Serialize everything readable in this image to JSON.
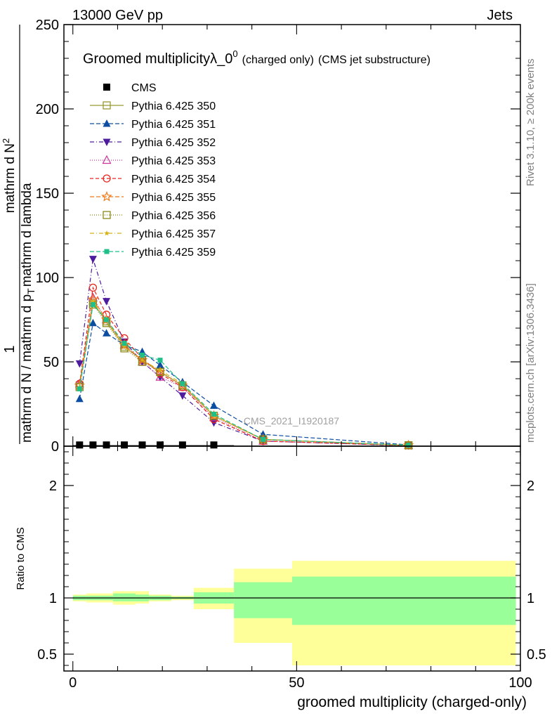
{
  "header": {
    "left": "13000 GeV pp",
    "right": "Jets"
  },
  "side_texts": {
    "rivet": "Rivet 3.1.10, ≥ 200k events",
    "mcplots": "mcplots.cern.ch [arXiv:1306.3436]"
  },
  "watermark": "CMS_2021_I1920187",
  "colors": {
    "band_outer": "#ffff99",
    "band_inner": "#99ff99"
  },
  "chart_data": [
    {
      "type": "line",
      "title": {
        "main": "Groomed multiplicityλ_0",
        "sup": "0",
        "small": "(charged only)",
        "tail": "(CMS jet substructure)"
      },
      "ylabel": {
        "top": "mathrm d N",
        "top_super": "2",
        "bottom": "mathrm d N / mathrm d p",
        "mid": "mathrm d p",
        "sub_T": "T",
        "tail": "mathrm d lambda",
        "tail2": "mathrm d lambda",
        "one": "1"
      },
      "xlim": [
        -2,
        100
      ],
      "ylim": [
        0,
        250
      ],
      "yticks": [
        0,
        50,
        100,
        150,
        200,
        250
      ],
      "ytick_labels": [
        "0",
        "50",
        "100",
        "150",
        "200",
        "250"
      ],
      "x": [
        1.5,
        4.5,
        7.5,
        11.5,
        15.5,
        19.5,
        24.5,
        31.5,
        42.5,
        75.0
      ],
      "series": [
        {
          "name": "CMS",
          "color": "#000000",
          "marker": "square-filled",
          "dash": "none",
          "values": [
            0.3,
            0.3,
            0.3,
            0.3,
            0.3,
            0.3,
            0.3,
            0.3,
            0,
            0
          ]
        },
        {
          "name": "Pythia 6.425 350",
          "color": "#999933",
          "marker": "square-open",
          "dash": "solid",
          "values": [
            36,
            85,
            74,
            59,
            51,
            44,
            36,
            18,
            4,
            0.5
          ]
        },
        {
          "name": "Pythia 6.425 351",
          "color": "#0c4da2",
          "marker": "triangle-up-filled",
          "dash": "6,3",
          "values": [
            28,
            73,
            67,
            60,
            56,
            48,
            38,
            24,
            7,
            0.8
          ]
        },
        {
          "name": "Pythia 6.425 352",
          "color": "#4d1c9e",
          "marker": "triangle-down-filled",
          "dash": "6,3,1,3",
          "values": [
            49,
            111,
            86,
            62,
            50,
            41,
            30,
            14,
            3,
            0.3
          ]
        },
        {
          "name": "Pythia 6.425 353",
          "color": "#cc3399",
          "marker": "triangle-up-open",
          "dash": "1,2",
          "values": [
            37,
            88,
            75,
            60,
            50,
            41,
            35,
            17,
            3,
            0.4
          ]
        },
        {
          "name": "Pythia 6.425 354",
          "color": "#e8261e",
          "marker": "circle-open",
          "dash": "5,3",
          "values": [
            37,
            94,
            78,
            64,
            52,
            43,
            35,
            16,
            3,
            0.4
          ]
        },
        {
          "name": "Pythia 6.425 355",
          "color": "#f07b1a",
          "marker": "star-open",
          "dash": "6,3",
          "values": [
            36,
            87,
            75,
            60,
            51,
            44,
            36,
            18,
            4,
            0.5
          ]
        },
        {
          "name": "Pythia 6.425 356",
          "color": "#8a8a1a",
          "marker": "square-open",
          "dash": "1,2",
          "values": [
            35,
            84,
            73,
            58,
            50,
            44,
            36,
            18,
            4,
            0.5
          ]
        },
        {
          "name": "Pythia 6.425 357",
          "color": "#d6b21a",
          "marker": "star-small",
          "dash": "6,3,1,3",
          "values": [
            35,
            86,
            74,
            59,
            51,
            45,
            37,
            18,
            4,
            0.5
          ]
        },
        {
          "name": "Pythia 6.425 359",
          "color": "#1fbf87",
          "marker": "square-small-filled",
          "dash": "6,3",
          "values": [
            34,
            84,
            75,
            61,
            54,
            51,
            37,
            19,
            4,
            0.6
          ]
        }
      ],
      "cms_bar_edges": [
        0,
        3,
        6,
        9,
        14,
        17,
        22,
        27,
        36,
        49,
        99
      ]
    },
    {
      "type": "area",
      "ylabel": "Ratio to CMS",
      "xlabel": "groomed multiplicity (charged-only)",
      "xlim": [
        -2,
        100
      ],
      "ylim": [
        0.35,
        2.35
      ],
      "yticks": [
        0.5,
        1,
        2
      ],
      "ytick_labels": [
        "0.5",
        "1",
        "2"
      ],
      "xticks": [
        0,
        50,
        100
      ],
      "xtick_labels": [
        "0",
        "50",
        "100"
      ],
      "bins": [
        {
          "lo": 0,
          "hi": 3,
          "outer": [
            0.97,
            1.03
          ],
          "inner": [
            0.98,
            1.02
          ]
        },
        {
          "lo": 3,
          "hi": 9,
          "outer": [
            0.96,
            1.04
          ],
          "inner": [
            0.98,
            1.02
          ]
        },
        {
          "lo": 9,
          "hi": 14,
          "outer": [
            0.94,
            1.06
          ],
          "inner": [
            0.97,
            1.04
          ]
        },
        {
          "lo": 14,
          "hi": 17,
          "outer": [
            0.95,
            1.06
          ],
          "inner": [
            0.97,
            1.03
          ]
        },
        {
          "lo": 17,
          "hi": 22,
          "outer": [
            0.97,
            1.03
          ],
          "inner": [
            0.98,
            1.02
          ]
        },
        {
          "lo": 22,
          "hi": 27,
          "outer": [
            0.98,
            1.02
          ],
          "inner": [
            0.99,
            1.01
          ]
        },
        {
          "lo": 27,
          "hi": 36,
          "outer": [
            0.9,
            1.09
          ],
          "inner": [
            0.95,
            1.05
          ]
        },
        {
          "lo": 36,
          "hi": 49,
          "outer": [
            0.6,
            1.26
          ],
          "inner": [
            0.82,
            1.14
          ]
        },
        {
          "lo": 49,
          "hi": 99,
          "outer": [
            0.4,
            1.33
          ],
          "inner": [
            0.76,
            1.19
          ]
        }
      ]
    }
  ]
}
